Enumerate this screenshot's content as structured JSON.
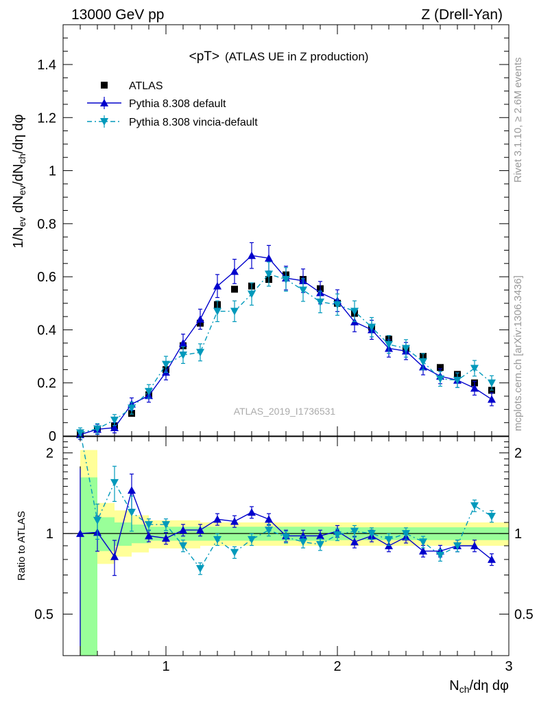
{
  "header": {
    "left": "13000 GeV pp",
    "right": "Z (Drell-Yan)"
  },
  "side_labels": {
    "rivet": "Rivet 3.1.10, ≥ 2.6M events",
    "mcplots": "mcplots.cern.ch [arXiv:1306.3436]"
  },
  "chart_data": {
    "type": "scatter",
    "title": "<pT>",
    "title_suffix": "(ATLAS UE in Z production)",
    "analysis_label": "ATLAS_2019_I1736531",
    "xlabel": "N_ch/dη dφ",
    "ylabel": "1/N_ev dN_ev/dN_ch/dη dφ",
    "ratio_ylabel": "Ratio to ATLAS",
    "xlim": [
      0.4,
      3.0
    ],
    "ylim": [
      0,
      1.55
    ],
    "ratio_ylim": [
      0.35,
      2.3
    ],
    "ratio_scale": "log",
    "x_ticks": [
      "1",
      "2",
      "3"
    ],
    "y_ticks": [
      "0",
      "0.2",
      "0.4",
      "0.6",
      "0.8",
      "1",
      "1.2",
      "1.4"
    ],
    "ratio_ticks": [
      "0.5",
      "1",
      "2"
    ],
    "x": [
      0.5,
      0.6,
      0.7,
      0.8,
      0.9,
      1.0,
      1.1,
      1.2,
      1.3,
      1.4,
      1.5,
      1.6,
      1.7,
      1.8,
      1.9,
      2.0,
      2.1,
      2.2,
      2.3,
      2.4,
      2.5,
      2.6,
      2.7,
      2.8,
      2.9
    ],
    "legend": [
      "ATLAS",
      "Pythia 8.308 default",
      "Pythia 8.308 vincia-default"
    ],
    "series": [
      {
        "name": "ATLAS",
        "color": "#000000",
        "marker": "square",
        "values": [
          0.005,
          0.025,
          0.038,
          0.085,
          0.155,
          0.25,
          0.34,
          0.425,
          0.495,
          0.553,
          0.565,
          0.59,
          0.607,
          0.59,
          0.555,
          0.5,
          0.462,
          0.41,
          0.365,
          0.33,
          0.3,
          0.258,
          0.232,
          0.2,
          0.172
        ]
      },
      {
        "name": "Pythia 8.308 default",
        "color": "#0000cc",
        "marker": "triangle-up",
        "values": [
          0.005,
          0.025,
          0.031,
          0.12,
          0.152,
          0.24,
          0.35,
          0.44,
          0.565,
          0.62,
          0.68,
          0.67,
          0.595,
          0.585,
          0.54,
          0.51,
          0.43,
          0.4,
          0.33,
          0.32,
          0.26,
          0.225,
          0.21,
          0.18,
          0.138
        ]
      },
      {
        "name": "Pythia 8.308 vincia-default",
        "color": "#0099bb",
        "marker": "triangle-down",
        "values": [
          0.012,
          0.027,
          0.06,
          0.105,
          0.168,
          0.27,
          0.305,
          0.315,
          0.47,
          0.47,
          0.535,
          0.61,
          0.59,
          0.55,
          0.505,
          0.495,
          0.47,
          0.41,
          0.345,
          0.33,
          0.28,
          0.215,
          0.21,
          0.255,
          0.2
        ]
      }
    ],
    "ratio_series": [
      {
        "name": "Pythia 8.308 default",
        "color": "#0000cc",
        "marker": "triangle-up",
        "values": [
          1.0,
          1.01,
          0.82,
          1.45,
          0.98,
          0.96,
          1.03,
          1.03,
          1.13,
          1.11,
          1.2,
          1.13,
          0.98,
          0.98,
          0.98,
          1.02,
          0.93,
          0.98,
          0.9,
          0.97,
          0.86,
          0.86,
          0.9,
          0.9,
          0.8
        ]
      },
      {
        "name": "Pythia 8.308 vincia-default",
        "color": "#0099bb",
        "marker": "triangle-down",
        "values": [
          2.4,
          1.12,
          1.55,
          1.2,
          1.08,
          1.08,
          0.9,
          0.74,
          0.95,
          0.85,
          0.95,
          1.03,
          0.97,
          0.93,
          0.91,
          0.99,
          1.02,
          1.0,
          0.95,
          1.0,
          0.93,
          0.83,
          0.9,
          1.27,
          1.16
        ]
      }
    ],
    "band_green": [
      [
        0.5,
        0.6,
        0.35,
        1.62
      ],
      [
        0.6,
        0.7,
        0.86,
        1.15
      ],
      [
        0.7,
        0.8,
        0.9,
        1.1
      ],
      [
        0.8,
        0.9,
        0.92,
        1.08
      ],
      [
        0.9,
        2.0,
        0.94,
        1.06
      ],
      [
        2.0,
        3.0,
        0.945,
        1.055
      ]
    ],
    "band_yellow": [
      [
        0.5,
        0.6,
        0.35,
        2.05
      ],
      [
        0.6,
        0.7,
        0.77,
        1.3
      ],
      [
        0.7,
        0.8,
        0.82,
        1.22
      ],
      [
        0.8,
        0.9,
        0.85,
        1.17
      ],
      [
        0.9,
        1.2,
        0.88,
        1.12
      ],
      [
        1.2,
        3.0,
        0.9,
        1.1
      ]
    ]
  }
}
